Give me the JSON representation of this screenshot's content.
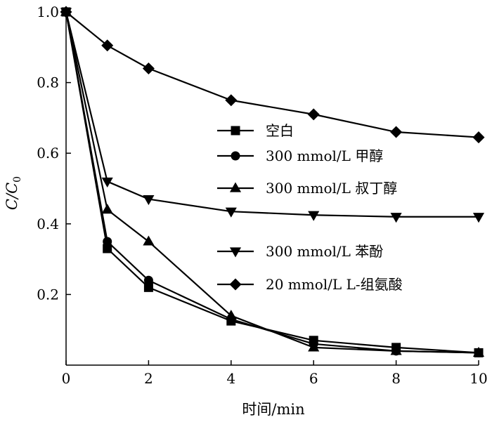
{
  "chart_data": {
    "type": "line",
    "xlabel": "时间/min",
    "ylabel": "C/C",
    "ylabel_sub": "0",
    "xlim": [
      0,
      10
    ],
    "ylim": [
      0,
      1.0
    ],
    "x_ticks": [
      "0",
      "2",
      "4",
      "6",
      "8",
      "10"
    ],
    "y_ticks": [
      "0.2",
      "0.4",
      "0.6",
      "0.8",
      "1.0"
    ],
    "grid": false,
    "legend_placement": "center-right",
    "series": [
      {
        "name": "空白",
        "marker": "square",
        "x": [
          0,
          1,
          2,
          4,
          6,
          8,
          10
        ],
        "y": [
          1.0,
          0.33,
          0.22,
          0.125,
          0.07,
          0.05,
          0.035
        ]
      },
      {
        "name": "300 mmol/L 甲醇",
        "marker": "circle",
        "x": [
          0,
          1,
          2,
          4,
          6,
          8,
          10
        ],
        "y": [
          1.0,
          0.35,
          0.24,
          0.13,
          0.06,
          0.04,
          0.035
        ]
      },
      {
        "name": "300 mmol/L 叔丁醇",
        "marker": "triangle-up",
        "x": [
          0,
          1,
          2,
          4,
          6,
          8,
          10
        ],
        "y": [
          1.0,
          0.44,
          0.35,
          0.14,
          0.05,
          0.04,
          0.035
        ]
      },
      {
        "name": "300 mmol/L 苯酚",
        "marker": "triangle-down",
        "x": [
          0,
          1,
          2,
          4,
          6,
          8,
          10
        ],
        "y": [
          1.0,
          0.52,
          0.47,
          0.435,
          0.425,
          0.42,
          0.42
        ]
      },
      {
        "name": "20 mmol/L L-组氨酸",
        "marker": "diamond",
        "x": [
          0,
          1,
          2,
          4,
          6,
          8,
          10
        ],
        "y": [
          1.0,
          0.905,
          0.84,
          0.75,
          0.71,
          0.66,
          0.645
        ]
      }
    ]
  }
}
